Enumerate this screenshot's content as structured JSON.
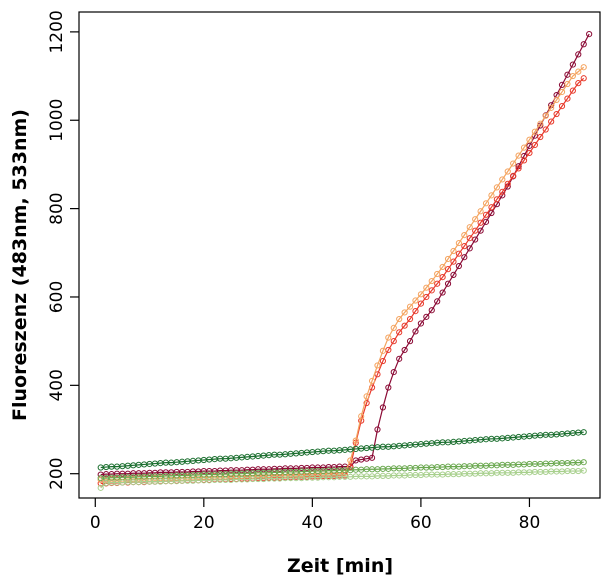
{
  "chart_data": {
    "type": "line",
    "title": "",
    "xlabel": "Zeit [min]",
    "ylabel": "Fluoreszenz (483nm, 533nm)",
    "xlim": [
      -3,
      93
    ],
    "ylim": [
      145,
      1245
    ],
    "xticks": [
      0,
      20,
      40,
      60,
      80
    ],
    "yticks": [
      200,
      400,
      600,
      800,
      1000,
      1200
    ],
    "grid": false,
    "legend": "none",
    "marker": "open-circle",
    "x_start": 1,
    "x_step": 1,
    "series": [
      {
        "color": "#8b0a35",
        "values": [
          198,
          199,
          199,
          200,
          200,
          200,
          201,
          201,
          201,
          202,
          202,
          203,
          203,
          203,
          204,
          204,
          204,
          205,
          205,
          206,
          206,
          206,
          207,
          207,
          208,
          208,
          208,
          209,
          209,
          210,
          210,
          210,
          211,
          211,
          212,
          212,
          212,
          213,
          213,
          214,
          214,
          214,
          215,
          215,
          216,
          216,
          216,
          230,
          232,
          234,
          236,
          300,
          350,
          395,
          430,
          460,
          480,
          500,
          522,
          540,
          555,
          570,
          590,
          610,
          630,
          650,
          670,
          690,
          710,
          730,
          750,
          770,
          790,
          810,
          830,
          850,
          873,
          896,
          919,
          942,
          965,
          988,
          1011,
          1034,
          1057,
          1080,
          1103,
          1126,
          1149,
          1172,
          1195
        ]
      },
      {
        "color": "#e83a2c",
        "values": [
          178,
          178,
          179,
          179,
          180,
          180,
          181,
          181,
          181,
          182,
          182,
          183,
          183,
          183,
          184,
          184,
          185,
          185,
          185,
          186,
          186,
          187,
          187,
          187,
          188,
          188,
          189,
          189,
          189,
          190,
          190,
          191,
          191,
          191,
          192,
          192,
          193,
          193,
          193,
          194,
          194,
          195,
          195,
          195,
          196,
          196,
          215,
          270,
          320,
          360,
          395,
          425,
          455,
          480,
          500,
          520,
          535,
          550,
          568,
          585,
          600,
          615,
          630,
          645,
          663,
          680,
          698,
          715,
          733,
          750,
          768,
          786,
          803,
          821,
          838,
          856,
          874,
          891,
          909,
          926,
          944,
          962,
          979,
          997,
          1014,
          1032,
          1049,
          1067,
          1084,
          1095
        ]
      },
      {
        "color": "#f4a460",
        "values": [
          186,
          186,
          187,
          187,
          187,
          188,
          188,
          189,
          189,
          189,
          190,
          190,
          190,
          191,
          191,
          191,
          192,
          192,
          193,
          193,
          193,
          194,
          194,
          194,
          195,
          195,
          195,
          196,
          196,
          197,
          197,
          197,
          198,
          198,
          198,
          199,
          199,
          199,
          200,
          200,
          201,
          201,
          201,
          202,
          202,
          202,
          230,
          275,
          330,
          375,
          410,
          445,
          478,
          508,
          530,
          550,
          565,
          578,
          592,
          606,
          621,
          636,
          652,
          668,
          686,
          704,
          722,
          740,
          758,
          776,
          794,
          812,
          830,
          848,
          866,
          884,
          902,
          920,
          938,
          956,
          974,
          992,
          1010,
          1028,
          1046,
          1064,
          1082,
          1100,
          1110,
          1120
        ]
      },
      {
        "color": "#1a6e2e",
        "values": [
          214,
          215,
          216,
          216,
          217,
          218,
          219,
          220,
          221,
          222,
          223,
          224,
          225,
          225,
          226,
          227,
          228,
          229,
          230,
          231,
          232,
          233,
          234,
          234,
          235,
          236,
          237,
          238,
          239,
          240,
          241,
          242,
          243,
          243,
          244,
          245,
          246,
          247,
          248,
          249,
          250,
          251,
          252,
          252,
          253,
          254,
          255,
          256,
          257,
          258,
          259,
          260,
          261,
          261,
          262,
          263,
          264,
          265,
          266,
          267,
          268,
          269,
          270,
          271,
          271,
          272,
          273,
          274,
          275,
          276,
          277,
          278,
          279,
          279,
          280,
          281,
          282,
          283,
          284,
          285,
          286,
          287,
          288,
          288,
          289,
          290,
          291,
          292,
          293,
          294
        ]
      },
      {
        "color": "#6aa84f",
        "values": [
          190,
          190,
          191,
          191,
          192,
          192,
          192,
          193,
          193,
          194,
          194,
          194,
          195,
          195,
          196,
          196,
          196,
          197,
          197,
          198,
          198,
          198,
          199,
          199,
          200,
          200,
          200,
          201,
          201,
          202,
          202,
          202,
          203,
          203,
          204,
          204,
          204,
          205,
          205,
          206,
          206,
          206,
          207,
          207,
          208,
          208,
          208,
          209,
          209,
          210,
          210,
          210,
          211,
          211,
          212,
          212,
          212,
          213,
          213,
          214,
          214,
          214,
          215,
          215,
          216,
          216,
          216,
          217,
          217,
          218,
          218,
          218,
          219,
          219,
          220,
          220,
          220,
          221,
          221,
          222,
          222,
          222,
          223,
          223,
          224,
          224,
          224,
          225,
          225,
          226
        ]
      },
      {
        "color": "#a8d08d",
        "values": [
          168,
          179,
          180,
          180,
          180,
          181,
          181,
          181,
          182,
          182,
          182,
          182,
          183,
          183,
          183,
          184,
          184,
          184,
          185,
          185,
          185,
          186,
          186,
          186,
          186,
          187,
          187,
          187,
          188,
          188,
          188,
          189,
          189,
          189,
          190,
          190,
          190,
          190,
          191,
          191,
          191,
          192,
          192,
          192,
          193,
          193,
          193,
          194,
          194,
          194,
          194,
          195,
          195,
          195,
          196,
          196,
          196,
          197,
          197,
          197,
          198,
          198,
          198,
          198,
          199,
          199,
          199,
          200,
          200,
          200,
          201,
          201,
          201,
          202,
          202,
          202,
          202,
          203,
          203,
          203,
          204,
          204,
          204,
          205,
          205,
          205,
          206,
          206,
          206,
          207
        ]
      }
    ]
  }
}
